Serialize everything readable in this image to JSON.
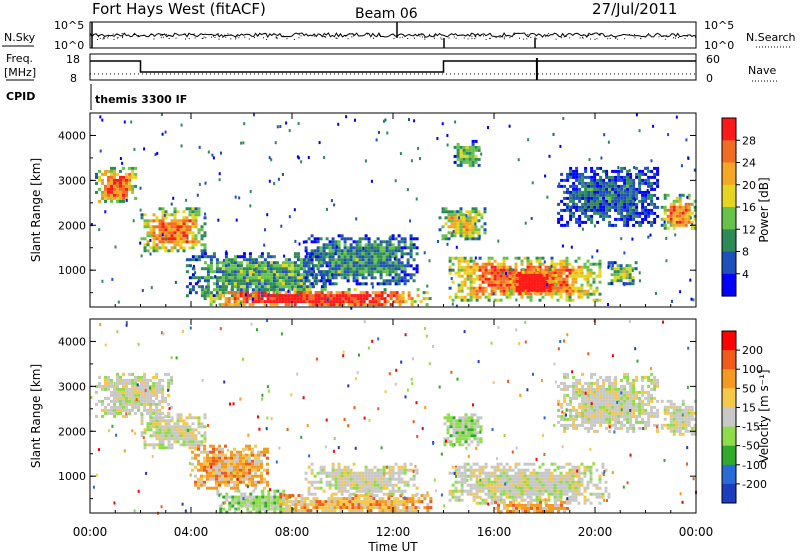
{
  "header": {
    "station": "Fort Hays West (fitACF)",
    "beam": "Beam 06",
    "date": "27/Jul/2011"
  },
  "noise_panel": {
    "left_label": "N.Sky",
    "right_label": "N.Search",
    "left_ticks": [
      "10^5",
      "10^0"
    ],
    "right_ticks": [
      "10^5",
      "10^0"
    ]
  },
  "freq_panel": {
    "left_label_1": "Freq.",
    "left_label_2": "[MHz]",
    "left_ticks": [
      "18",
      "8"
    ],
    "right_ticks": [
      "60",
      "0"
    ],
    "right_label": "Nave",
    "cpid_label": "CPID",
    "cpid_value": "themis 3300 IF"
  },
  "x_axis": {
    "label": "Time UT",
    "ticks": [
      "00:00",
      "04:00",
      "08:00",
      "12:00",
      "16:00",
      "20:00",
      "00:00"
    ],
    "range_hours": [
      0,
      24
    ]
  },
  "power_panel": {
    "ylabel": "Slant Range [km]",
    "yticks": [
      "1000",
      "2000",
      "3000",
      "4000"
    ],
    "cbar_label": "Power [dB]",
    "cbar_ticks": [
      "4",
      "8",
      "12",
      "16",
      "20",
      "24",
      "28"
    ],
    "cbar_colors": [
      "#0000ff",
      "#1e4fbe",
      "#2e8b57",
      "#66c24a",
      "#e6d51e",
      "#f5a623",
      "#f26d21",
      "#ff1a1a"
    ]
  },
  "velocity_panel": {
    "ylabel": "Slant Range [km]",
    "yticks": [
      "1000",
      "2000",
      "3000",
      "4000"
    ],
    "cbar_label": "Velocity [m s⁻¹]",
    "cbar_ticks": [
      "200",
      "100",
      "50",
      "15",
      "-15",
      "-50",
      "-100",
      "-200"
    ],
    "cbar_colors": [
      "#1e3cbe",
      "#2a6ad8",
      "#2faa2a",
      "#8fdc4a",
      "#c8c8c8",
      "#f5c84a",
      "#f59a1e",
      "#f25a1a",
      "#ff0000"
    ]
  },
  "chart_data": {
    "type": "heatmap",
    "x_unit": "hours UT",
    "y_unit": "km",
    "ylim": [
      180,
      4500
    ],
    "xlim": [
      0,
      24
    ],
    "power_regions": [
      {
        "t0": 0.2,
        "t1": 1.8,
        "r0": 2500,
        "r1": 3300,
        "level": 0.75
      },
      {
        "t0": 2.0,
        "t1": 4.5,
        "r0": 1400,
        "r1": 2400,
        "level": 0.7
      },
      {
        "t0": 3.8,
        "t1": 9.5,
        "r0": 400,
        "r1": 1400,
        "level": 0.35
      },
      {
        "t0": 4.5,
        "t1": 13.5,
        "r0": 200,
        "r1": 600,
        "level": 0.9
      },
      {
        "t0": 13.8,
        "t1": 15.6,
        "r0": 1700,
        "r1": 2400,
        "level": 0.55
      },
      {
        "t0": 14.4,
        "t1": 15.4,
        "r0": 3300,
        "r1": 3900,
        "level": 0.4
      },
      {
        "t0": 14.2,
        "t1": 20.2,
        "r0": 350,
        "r1": 1300,
        "level": 0.75
      },
      {
        "t0": 16.5,
        "t1": 18.5,
        "r0": 450,
        "r1": 1050,
        "level": 0.95
      },
      {
        "t0": 20.5,
        "t1": 21.6,
        "r0": 700,
        "r1": 1200,
        "level": 0.45
      },
      {
        "t0": 22.6,
        "t1": 24.0,
        "r0": 1900,
        "r1": 2700,
        "level": 0.7
      },
      {
        "t0": 8.5,
        "t1": 13.0,
        "r0": 700,
        "r1": 1800,
        "level": 0.3
      },
      {
        "t0": 18.5,
        "t1": 22.5,
        "r0": 2000,
        "r1": 3300,
        "level": 0.2
      }
    ],
    "velocity_regions": [
      {
        "t0": 0.2,
        "t1": 3.2,
        "r0": 2300,
        "r1": 3300,
        "vclass": "gray"
      },
      {
        "t0": 2.0,
        "t1": 4.5,
        "r0": 1600,
        "r1": 2400,
        "vclass": "gray"
      },
      {
        "t0": 4.0,
        "t1": 7.0,
        "r0": 700,
        "r1": 1700,
        "vclass": "orange"
      },
      {
        "t0": 5.0,
        "t1": 8.0,
        "r0": 200,
        "r1": 700,
        "vclass": "green"
      },
      {
        "t0": 7.5,
        "t1": 13.5,
        "r0": 200,
        "r1": 600,
        "vclass": "yellow"
      },
      {
        "t0": 8.5,
        "t1": 13.0,
        "r0": 600,
        "r1": 1300,
        "vclass": "gray"
      },
      {
        "t0": 14.0,
        "t1": 15.5,
        "r0": 1700,
        "r1": 2400,
        "vclass": "green"
      },
      {
        "t0": 14.2,
        "t1": 20.5,
        "r0": 400,
        "r1": 1300,
        "vclass": "gray"
      },
      {
        "t0": 16.0,
        "t1": 19.0,
        "r0": 200,
        "r1": 450,
        "vclass": "orange"
      },
      {
        "t0": 22.6,
        "t1": 24.0,
        "r0": 1900,
        "r1": 2700,
        "vclass": "gray"
      },
      {
        "t0": 18.5,
        "t1": 22.5,
        "r0": 2000,
        "r1": 3300,
        "vclass": "gray"
      }
    ]
  }
}
